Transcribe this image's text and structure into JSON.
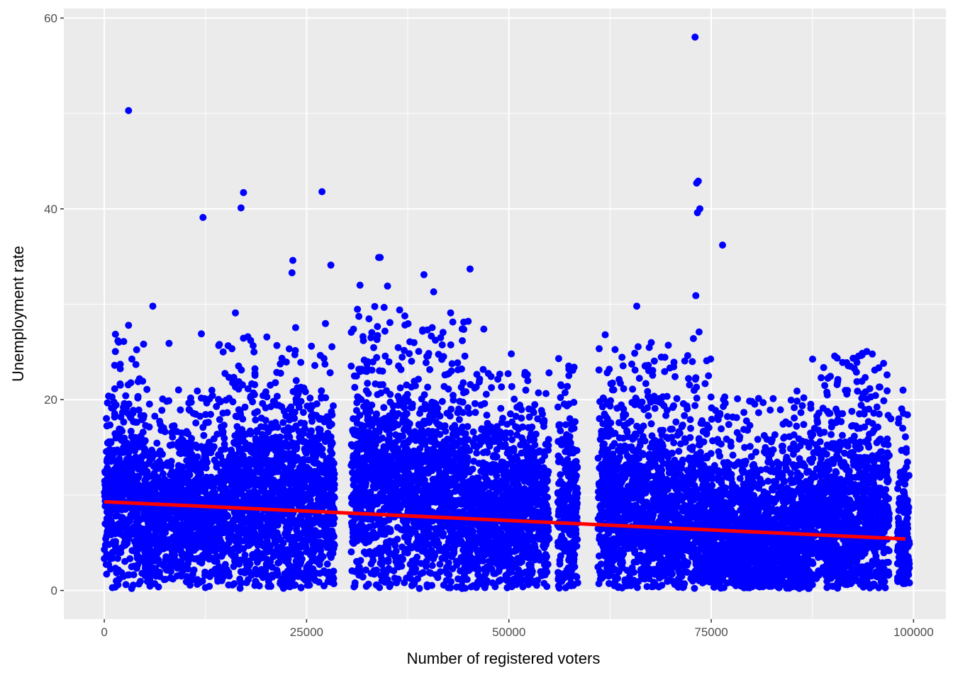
{
  "chart_data": {
    "type": "scatter",
    "title": "",
    "xlabel": "Number of registered voters",
    "ylabel": "Unemployment rate",
    "xlim": [
      -5000,
      104000
    ],
    "ylim": [
      -3,
      61
    ],
    "x_ticks": [
      0,
      25000,
      50000,
      75000,
      100000
    ],
    "x_tick_labels": [
      "0",
      "25000",
      "50000",
      "75000",
      "100000"
    ],
    "y_ticks": [
      0,
      20,
      40,
      60
    ],
    "y_tick_labels": [
      "0",
      "20",
      "40",
      "60"
    ],
    "grid": true,
    "legend": "none",
    "colors": {
      "panel": "#ebebeb",
      "grid_major": "#ffffff",
      "points": "#0000ff",
      "trend_line": "#ff0000",
      "tick_text": "#4d4d4d"
    },
    "trend_line": {
      "x": [
        0,
        99000
      ],
      "y": [
        9.3,
        5.4
      ]
    },
    "clusters": [
      {
        "x_range": [
          0,
          1200
        ],
        "y_center": 9,
        "y_spread": 3.5
      },
      {
        "x_range": [
          1200,
          5000
        ],
        "y_center": 10,
        "y_spread": 4.5
      },
      {
        "x_range": [
          5000,
          14000
        ],
        "y_center": 8,
        "y_spread": 3.5
      },
      {
        "x_range": [
          14000,
          22000
        ],
        "y_center": 9.5,
        "y_spread": 4.5
      },
      {
        "x_range": [
          22000,
          28500
        ],
        "y_center": 9,
        "y_spread": 5
      },
      {
        "x_range": [
          30500,
          38000
        ],
        "y_center": 11,
        "y_spread": 5
      },
      {
        "x_range": [
          38000,
          45000
        ],
        "y_center": 10,
        "y_spread": 5
      },
      {
        "x_range": [
          45000,
          55000
        ],
        "y_center": 8,
        "y_spread": 4
      },
      {
        "x_range": [
          56000,
          58500
        ],
        "y_center": 8,
        "y_spread": 4.5
      },
      {
        "x_range": [
          61000,
          68000
        ],
        "y_center": 9,
        "y_spread": 4.5
      },
      {
        "x_range": [
          68000,
          75000
        ],
        "y_center": 8,
        "y_spread": 4.5
      },
      {
        "x_range": [
          75000,
          80000
        ],
        "y_center": 6,
        "y_spread": 4
      },
      {
        "x_range": [
          80000,
          87000
        ],
        "y_center": 5,
        "y_spread": 4
      },
      {
        "x_range": [
          87000,
          97000
        ],
        "y_center": 8,
        "y_spread": 4.5
      },
      {
        "x_range": [
          98000,
          99500
        ],
        "y_center": 6,
        "y_spread": 3.5
      }
    ],
    "outliers": [
      [
        3000,
        50.3
      ],
      [
        12200,
        39.1
      ],
      [
        16900,
        40.1
      ],
      [
        17200,
        41.7
      ],
      [
        26900,
        41.8
      ],
      [
        73000,
        58.0
      ],
      [
        73200,
        42.7
      ],
      [
        73400,
        42.9
      ],
      [
        73300,
        39.6
      ],
      [
        73600,
        40.0
      ],
      [
        76400,
        36.2
      ],
      [
        73100,
        30.9
      ],
      [
        73500,
        27.1
      ],
      [
        65800,
        29.8
      ],
      [
        6000,
        29.8
      ],
      [
        3000,
        27.8
      ],
      [
        16200,
        29.1
      ],
      [
        23300,
        34.6
      ],
      [
        23200,
        33.3
      ],
      [
        28000,
        34.1
      ],
      [
        33900,
        34.9
      ],
      [
        34100,
        34.9
      ],
      [
        45200,
        33.7
      ],
      [
        39500,
        33.1
      ],
      [
        31600,
        32.0
      ],
      [
        35000,
        31.9
      ],
      [
        40700,
        31.3
      ],
      [
        2400,
        26.1
      ],
      [
        12000,
        26.9
      ],
      [
        36500,
        29.4
      ],
      [
        42800,
        29.1
      ],
      [
        46900,
        27.4
      ],
      [
        61900,
        26.8
      ],
      [
        69700,
        25.7
      ],
      [
        72800,
        26.4
      ],
      [
        8000,
        25.9
      ],
      [
        18500,
        25.0
      ],
      [
        50300,
        24.8
      ],
      [
        85600,
        20.9
      ],
      [
        88300,
        18.6
      ],
      [
        92200,
        23.5
      ],
      [
        93000,
        23.9
      ],
      [
        95200,
        23.1
      ],
      [
        96300,
        23.8
      ],
      [
        98700,
        21.0
      ],
      [
        97200,
        18.0
      ],
      [
        99000,
        16.1
      ],
      [
        1000,
        0.3
      ],
      [
        22000,
        0.5
      ],
      [
        48300,
        0.4
      ],
      [
        42500,
        0.3
      ],
      [
        12500,
        0.3
      ],
      [
        58500,
        0.8
      ],
      [
        66800,
        1.2
      ],
      [
        96000,
        0.9
      ]
    ]
  }
}
